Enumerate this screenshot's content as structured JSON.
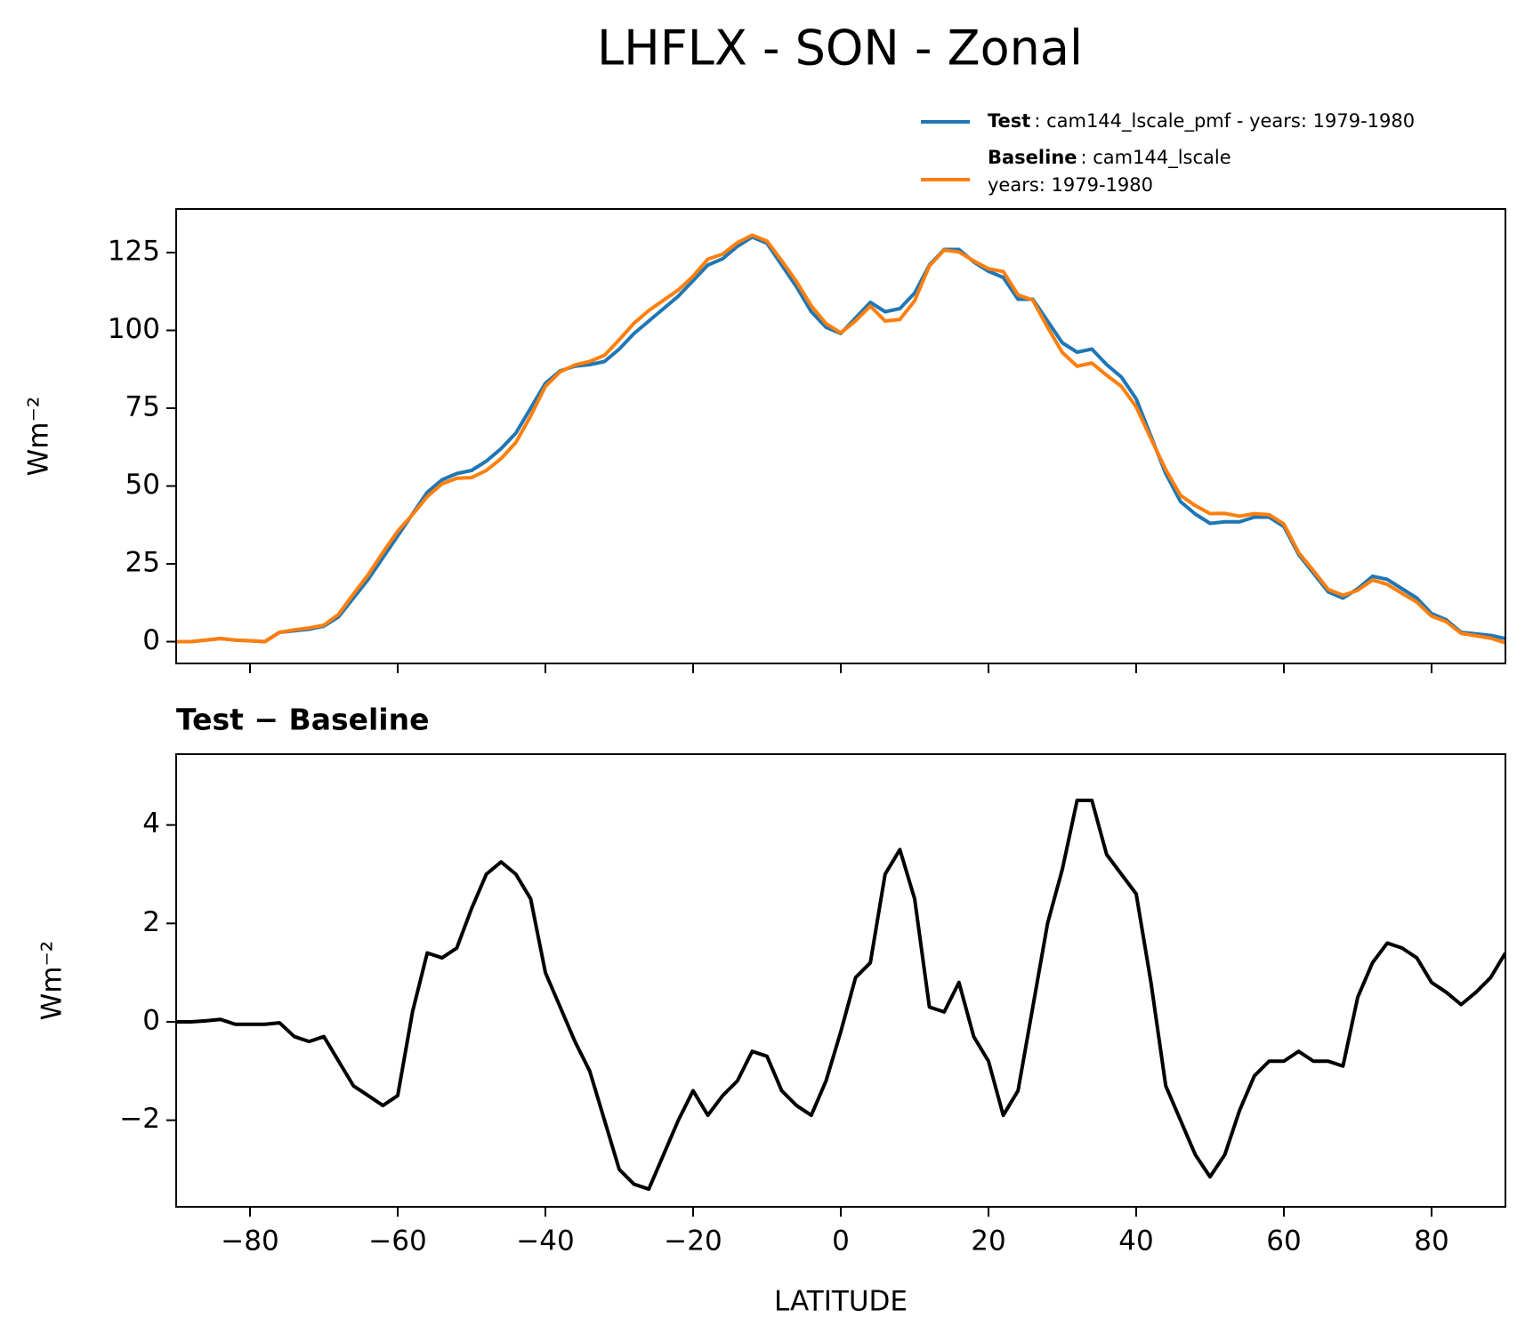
{
  "title": "LHFLX - SON - Zonal",
  "chart_data": [
    {
      "type": "line",
      "x": [
        -90,
        -88,
        -86,
        -84,
        -82,
        -80,
        -78,
        -76,
        -74,
        -72,
        -70,
        -68,
        -66,
        -64,
        -62,
        -60,
        -58,
        -56,
        -54,
        -52,
        -50,
        -48,
        -46,
        -44,
        -42,
        -40,
        -38,
        -36,
        -34,
        -32,
        -30,
        -28,
        -26,
        -24,
        -22,
        -20,
        -18,
        -16,
        -14,
        -12,
        -10,
        -8,
        -6,
        -4,
        -2,
        0,
        2,
        4,
        6,
        8,
        10,
        12,
        14,
        16,
        18,
        20,
        22,
        24,
        26,
        28,
        30,
        32,
        34,
        36,
        38,
        40,
        42,
        44,
        46,
        48,
        50,
        52,
        54,
        56,
        58,
        60,
        62,
        64,
        66,
        68,
        70,
        72,
        74,
        76,
        78,
        80,
        82,
        84,
        86,
        88,
        90
      ],
      "series": [
        {
          "name": "Test",
          "description": [
            ": cam144_lscale_pmf - years: 1979-1980"
          ],
          "color": "#1f77b4",
          "values": [
            0,
            0,
            0.5,
            1,
            0.5,
            0.3,
            0,
            3,
            3.5,
            4,
            5,
            8,
            14,
            20,
            27,
            34,
            41,
            48,
            52,
            54,
            55,
            58,
            62,
            67,
            75,
            83,
            87,
            88.5,
            89,
            90,
            94,
            99,
            103,
            107,
            111,
            116,
            121,
            123,
            127,
            130,
            128,
            121,
            114,
            106,
            101,
            99,
            104,
            109,
            106,
            107,
            112,
            121,
            126,
            126,
            122,
            119,
            117,
            110,
            110,
            103,
            96,
            93,
            94,
            89,
            85,
            78,
            66,
            54,
            45,
            41,
            38,
            38.5,
            38.5,
            40,
            40,
            37,
            28,
            22,
            16,
            14,
            17,
            21,
            20,
            17,
            14,
            9,
            7,
            3,
            2.5,
            2,
            1
          ]
        },
        {
          "name": "Baseline",
          "description": [
            ": cam144_lscale",
            "years: 1979-1980"
          ],
          "color": "#ff7f0e",
          "values": [
            0,
            0,
            0.5,
            1,
            0.5,
            0.3,
            0,
            3,
            3.8,
            4.4,
            5.3,
            8.8,
            15.3,
            21.5,
            28.7,
            35.5,
            40.8,
            46.6,
            50.7,
            52.5,
            52.7,
            55,
            58.8,
            64,
            72.5,
            82,
            86.7,
            88.9,
            90,
            92,
            97,
            102.3,
            106.4,
            109.7,
            113,
            117.4,
            122.9,
            124.5,
            128.2,
            130.6,
            128.7,
            122.4,
            115.7,
            107.9,
            102.2,
            99.2,
            103.1,
            107.8,
            103,
            103.5,
            109.5,
            120.7,
            125.8,
            125.2,
            122.3,
            119.8,
            118.9,
            111.4,
            109.7,
            101,
            92.9,
            88.5,
            89.5,
            85.6,
            82,
            75.4,
            65.2,
            55.3,
            47,
            43.7,
            41.15,
            41.2,
            40.3,
            41.1,
            40.8,
            37.8,
            28.6,
            22.8,
            16.8,
            14.9,
            16.5,
            19.8,
            18.4,
            15.5,
            12.7,
            8.2,
            6.4,
            2.65,
            1.9,
            1.1,
            -0.4
          ]
        }
      ],
      "ylabel": "Wm⁻²",
      "xlim": [
        -90,
        90
      ],
      "xticks": [
        -80,
        -60,
        -40,
        -20,
        0,
        20,
        40,
        60,
        80
      ],
      "ylim": [
        -7,
        139
      ],
      "yticks": [
        0,
        25,
        50,
        75,
        100,
        125
      ]
    },
    {
      "type": "line",
      "title": "Test − Baseline",
      "x": [
        -90,
        -88,
        -86,
        -84,
        -82,
        -80,
        -78,
        -76,
        -74,
        -72,
        -70,
        -68,
        -66,
        -64,
        -62,
        -60,
        -58,
        -56,
        -54,
        -52,
        -50,
        -48,
        -46,
        -44,
        -42,
        -40,
        -38,
        -36,
        -34,
        -32,
        -30,
        -28,
        -26,
        -24,
        -22,
        -20,
        -18,
        -16,
        -14,
        -12,
        -10,
        -8,
        -6,
        -4,
        -2,
        0,
        2,
        4,
        6,
        8,
        10,
        12,
        14,
        16,
        18,
        20,
        22,
        24,
        26,
        28,
        30,
        32,
        34,
        36,
        38,
        40,
        42,
        44,
        46,
        48,
        50,
        52,
        54,
        56,
        58,
        60,
        62,
        64,
        66,
        68,
        70,
        72,
        74,
        76,
        78,
        80,
        82,
        84,
        86,
        88,
        90
      ],
      "series": [
        {
          "color": "#000000",
          "values": [
            0,
            0,
            0.02,
            0.05,
            -0.05,
            -0.05,
            -0.05,
            -0.02,
            -0.3,
            -0.4,
            -0.3,
            -0.8,
            -1.3,
            -1.5,
            -1.7,
            -1.5,
            0.2,
            1.4,
            1.3,
            1.5,
            2.3,
            3.0,
            3.25,
            3.0,
            2.5,
            1.0,
            0.3,
            -0.4,
            -1.0,
            -2.0,
            -3.0,
            -3.3,
            -3.4,
            -2.7,
            -2.0,
            -1.4,
            -1.9,
            -1.5,
            -1.2,
            -0.6,
            -0.7,
            -1.4,
            -1.7,
            -1.9,
            -1.2,
            -0.2,
            0.9,
            1.2,
            3.0,
            3.5,
            2.5,
            0.3,
            0.2,
            0.8,
            -0.3,
            -0.8,
            -1.9,
            -1.4,
            0.3,
            2.0,
            3.1,
            4.5,
            4.5,
            3.4,
            3.0,
            2.6,
            0.8,
            -1.3,
            -2.0,
            -2.7,
            -3.15,
            -2.7,
            -1.8,
            -1.1,
            -0.8,
            -0.8,
            -0.6,
            -0.8,
            -0.8,
            -0.9,
            0.5,
            1.2,
            1.6,
            1.5,
            1.3,
            0.8,
            0.6,
            0.35,
            0.6,
            0.9,
            1.4
          ]
        }
      ],
      "ylabel": "Wm⁻²",
      "xlabel": "LATITUDE",
      "xlim": [
        -90,
        90
      ],
      "xticks": [
        {
          "value": -80,
          "label": "−80"
        },
        {
          "value": -60,
          "label": "−60"
        },
        {
          "value": -40,
          "label": "−40"
        },
        {
          "value": -20,
          "label": "−20"
        },
        0,
        20,
        40,
        60,
        80
      ],
      "ylim": [
        -3.76,
        5.44
      ],
      "yticks": [
        {
          "value": -2,
          "label": "−2"
        },
        0,
        2,
        4
      ]
    }
  ]
}
